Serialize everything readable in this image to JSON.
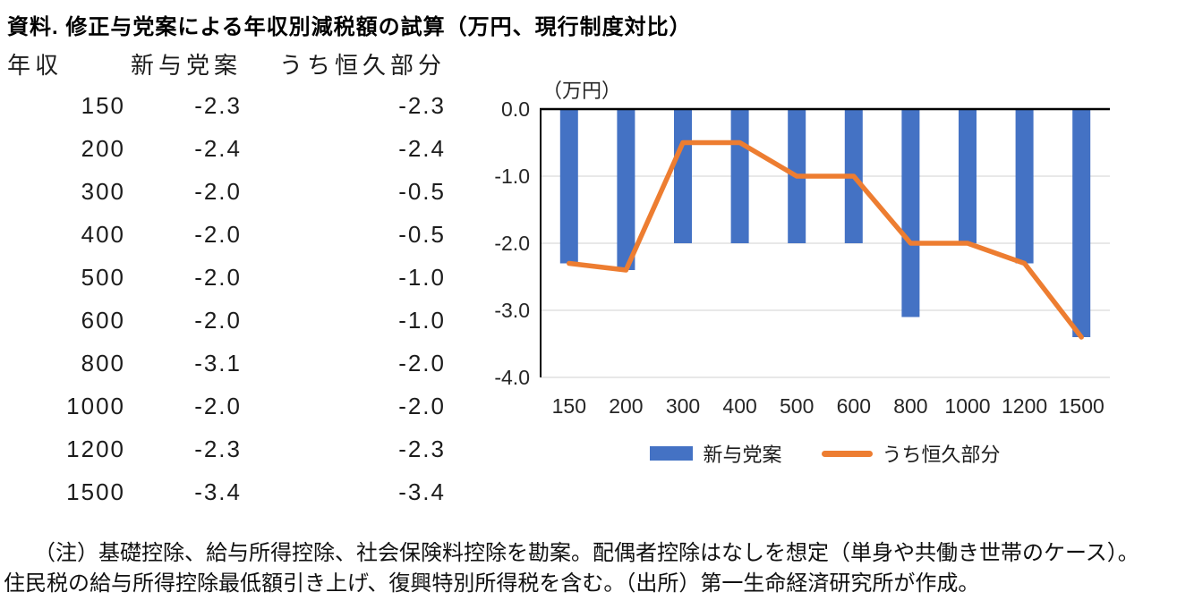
{
  "title": "資料. 修正与党案による年収別減税額の試算（万円、現行制度対比）",
  "table": {
    "headers": [
      "年収",
      "新与党案",
      "うち恒久部分"
    ],
    "rows": [
      [
        "150",
        "-2.3",
        "-2.3"
      ],
      [
        "200",
        "-2.4",
        "-2.4"
      ],
      [
        "300",
        "-2.0",
        "-0.5"
      ],
      [
        "400",
        "-2.0",
        "-0.5"
      ],
      [
        "500",
        "-2.0",
        "-1.0"
      ],
      [
        "600",
        "-2.0",
        "-1.0"
      ],
      [
        "800",
        "-3.1",
        "-2.0"
      ],
      [
        "1000",
        "-2.0",
        "-2.0"
      ],
      [
        "1200",
        "-2.3",
        "-2.3"
      ],
      [
        "1500",
        "-3.4",
        "-3.4"
      ]
    ]
  },
  "chart_data": {
    "type": "bar",
    "subtype": "bar+line combo",
    "title": "",
    "unit_label": "（万円）",
    "categories": [
      "150",
      "200",
      "300",
      "400",
      "500",
      "600",
      "800",
      "1000",
      "1200",
      "1500"
    ],
    "series": [
      {
        "name": "新与党案",
        "type": "bar",
        "color": "#4472C4",
        "values": [
          -2.3,
          -2.4,
          -2.0,
          -2.0,
          -2.0,
          -2.0,
          -3.1,
          -2.0,
          -2.3,
          -3.4
        ]
      },
      {
        "name": "うち恒久部分",
        "type": "line",
        "color": "#ED7D31",
        "values": [
          -2.3,
          -2.4,
          -0.5,
          -0.5,
          -1.0,
          -1.0,
          -2.0,
          -2.0,
          -2.3,
          -3.4
        ]
      }
    ],
    "xlabel": "",
    "ylabel": "",
    "ylim": [
      -4.0,
      0.0
    ],
    "y_ticks": [
      "0.0",
      "-1.0",
      "-2.0",
      "-3.0",
      "-4.0"
    ],
    "y_tick_values": [
      0.0,
      -1.0,
      -2.0,
      -3.0,
      -4.0
    ],
    "grid": true,
    "legend_position": "bottom"
  },
  "colors": {
    "bar": "#4472C4",
    "line": "#ED7D31",
    "gridline": "#D9D9D9",
    "axis": "#000000"
  },
  "notes": {
    "line1": "（注）基礎控除、給与所得控除、社会保険料控除を勘案。配偶者控除はなしを想定（単身や共働き世帯のケース）。",
    "line2": "住民税の給与所得控除最低額引き上げ、復興特別所得税を含む。（出所）第一生命経済研究所が作成。"
  }
}
